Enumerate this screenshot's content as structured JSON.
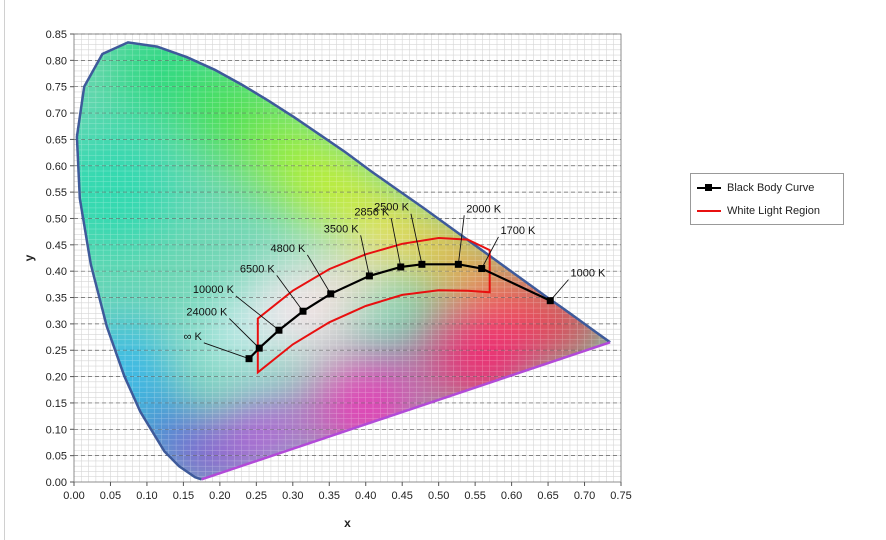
{
  "chart_data": {
    "type": "scatter",
    "title": "",
    "xlabel": "x",
    "ylabel": "y",
    "xlim": [
      0.0,
      0.75
    ],
    "ylim": [
      0.0,
      0.85
    ],
    "x_ticks": [
      "0.00",
      "0.05",
      "0.10",
      "0.15",
      "0.20",
      "0.25",
      "0.30",
      "0.35",
      "0.40",
      "0.45",
      "0.50",
      "0.55",
      "0.60",
      "0.65",
      "0.70",
      "0.75"
    ],
    "y_ticks": [
      "0.00",
      "0.05",
      "0.10",
      "0.15",
      "0.20",
      "0.25",
      "0.30",
      "0.35",
      "0.40",
      "0.45",
      "0.50",
      "0.55",
      "0.60",
      "0.65",
      "0.70",
      "0.75",
      "0.80",
      "0.85"
    ],
    "grid": true,
    "legend_position": "right",
    "spectral_locus": [
      [
        0.175,
        0.005
      ],
      [
        0.166,
        0.009
      ],
      [
        0.144,
        0.03
      ],
      [
        0.124,
        0.058
      ],
      [
        0.091,
        0.133
      ],
      [
        0.069,
        0.201
      ],
      [
        0.045,
        0.295
      ],
      [
        0.023,
        0.413
      ],
      [
        0.008,
        0.538
      ],
      [
        0.004,
        0.655
      ],
      [
        0.014,
        0.75
      ],
      [
        0.039,
        0.812
      ],
      [
        0.074,
        0.834
      ],
      [
        0.114,
        0.826
      ],
      [
        0.155,
        0.806
      ],
      [
        0.193,
        0.782
      ],
      [
        0.23,
        0.754
      ],
      [
        0.266,
        0.724
      ],
      [
        0.302,
        0.692
      ],
      [
        0.337,
        0.659
      ],
      [
        0.373,
        0.625
      ],
      [
        0.408,
        0.589
      ],
      [
        0.444,
        0.554
      ],
      [
        0.479,
        0.52
      ],
      [
        0.512,
        0.487
      ],
      [
        0.544,
        0.455
      ],
      [
        0.575,
        0.424
      ],
      [
        0.603,
        0.396
      ],
      [
        0.627,
        0.372
      ],
      [
        0.648,
        0.351
      ],
      [
        0.666,
        0.334
      ],
      [
        0.68,
        0.32
      ],
      [
        0.691,
        0.309
      ],
      [
        0.714,
        0.286
      ],
      [
        0.735,
        0.265
      ]
    ],
    "series": [
      {
        "name": "Black Body Curve",
        "color": "#000000",
        "points": [
          [
            0.24,
            0.234
          ],
          [
            0.254,
            0.254
          ],
          [
            0.281,
            0.288
          ],
          [
            0.314,
            0.324
          ],
          [
            0.352,
            0.357
          ],
          [
            0.405,
            0.391
          ],
          [
            0.448,
            0.408
          ],
          [
            0.477,
            0.413
          ],
          [
            0.527,
            0.413
          ],
          [
            0.559,
            0.405
          ],
          [
            0.653,
            0.344
          ]
        ],
        "labels": [
          "∞ K",
          "24000 K",
          "10000 K",
          "6500 K",
          "4800 K",
          "3500 K",
          "2856 K",
          "2500 K",
          "2000 K",
          "1700 K",
          "1000 K"
        ],
        "label_positions": [
          [
            0.178,
            0.264
          ],
          [
            0.213,
            0.31
          ],
          [
            0.222,
            0.353
          ],
          [
            0.278,
            0.392
          ],
          [
            0.32,
            0.431
          ],
          [
            0.393,
            0.468
          ],
          [
            0.435,
            0.5
          ],
          [
            0.462,
            0.509
          ],
          [
            0.535,
            0.506
          ],
          [
            0.582,
            0.465
          ],
          [
            0.678,
            0.384
          ]
        ]
      },
      {
        "name": "White Light Region",
        "color": "#ff0000",
        "points": [
          [
            0.252,
            0.208
          ],
          [
            0.252,
            0.31
          ],
          [
            0.3,
            0.363
          ],
          [
            0.35,
            0.404
          ],
          [
            0.4,
            0.432
          ],
          [
            0.45,
            0.452
          ],
          [
            0.5,
            0.463
          ],
          [
            0.54,
            0.46
          ],
          [
            0.57,
            0.44
          ],
          [
            0.57,
            0.36
          ],
          [
            0.54,
            0.363
          ],
          [
            0.5,
            0.364
          ],
          [
            0.45,
            0.355
          ],
          [
            0.4,
            0.334
          ],
          [
            0.35,
            0.303
          ],
          [
            0.3,
            0.261
          ],
          [
            0.252,
            0.208
          ]
        ]
      }
    ]
  },
  "legend": {
    "black_body_label": "Black Body Curve",
    "white_light_label": "White Light Region"
  }
}
